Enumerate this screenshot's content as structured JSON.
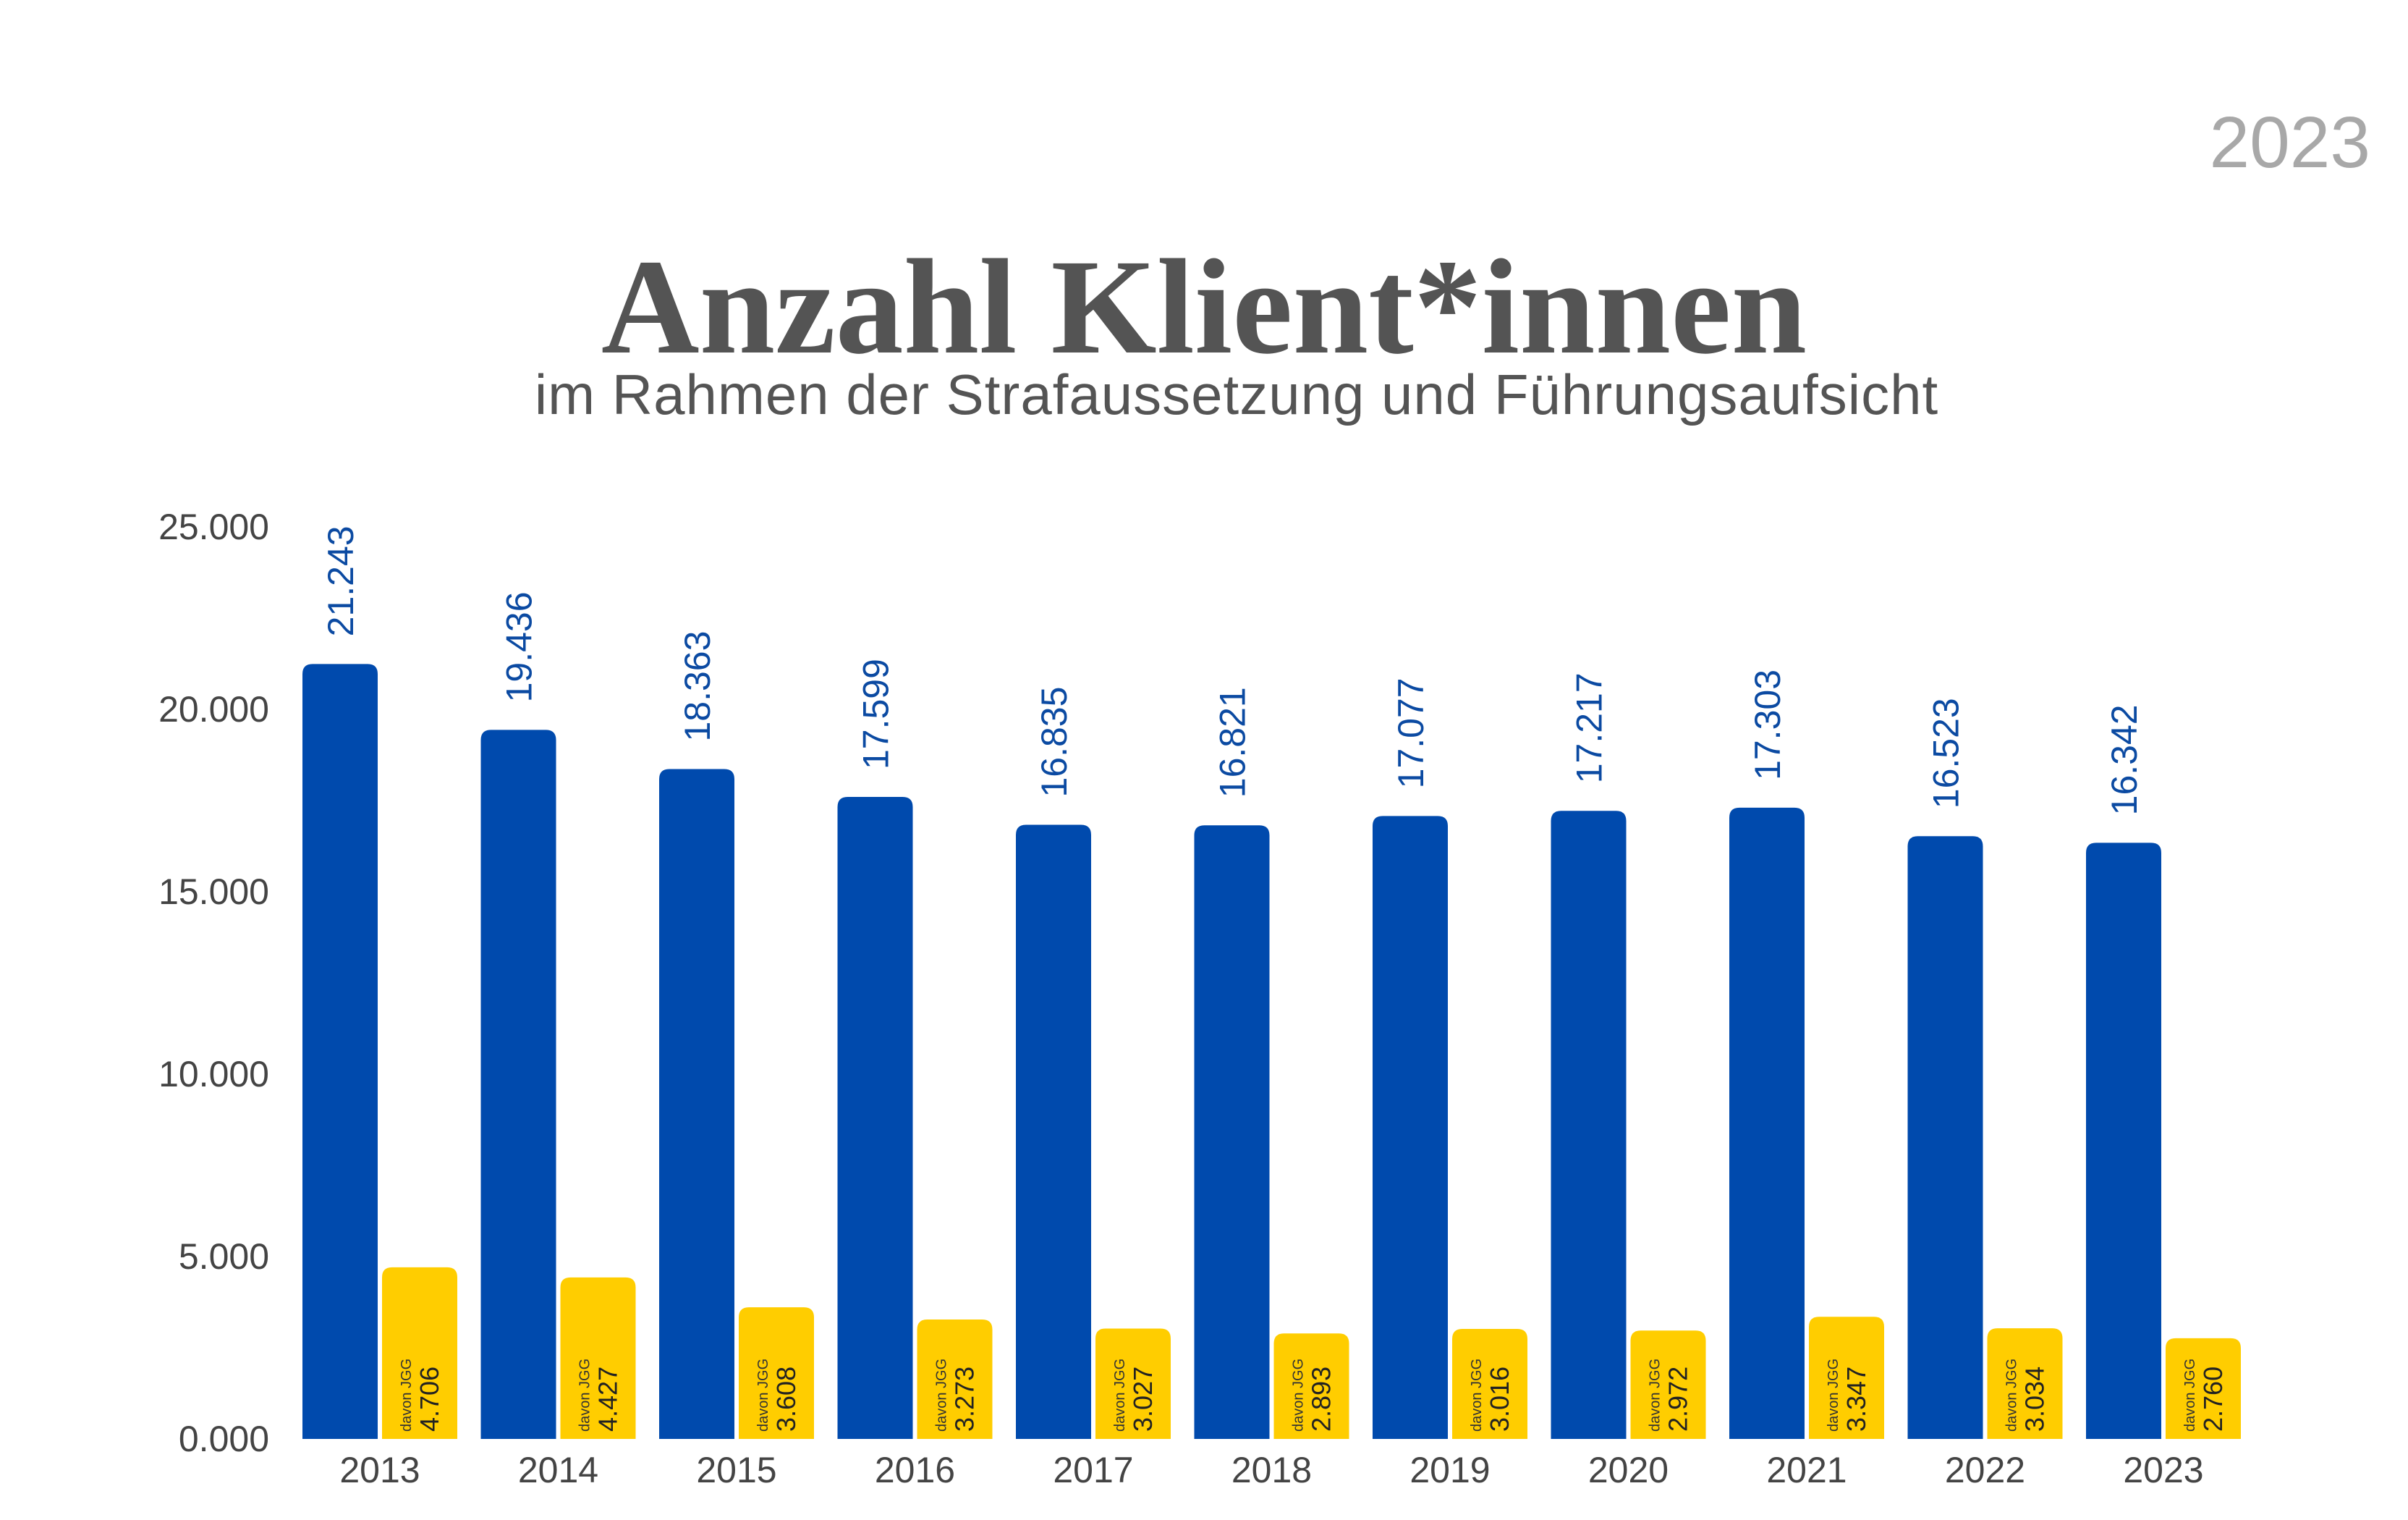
{
  "corner_year": "2023",
  "colors": {
    "primary": "#004aad",
    "secondary": "#ffcd00",
    "value_text": "#0b4aa2"
  },
  "chart_data": {
    "type": "bar",
    "title": "Anzahl Klient*innen",
    "subtitle": "im Rahmen der Strafaussetzung und Führungsaufsicht",
    "categories": [
      "2013",
      "2014",
      "2015",
      "2016",
      "2017",
      "2018",
      "2019",
      "2020",
      "2021",
      "2022",
      "2023"
    ],
    "series": [
      {
        "values": [
          21243,
          19436,
          18363,
          17599,
          16835,
          16821,
          17077,
          17217,
          17303,
          16523,
          16342
        ],
        "labels": [
          "21.243",
          "19.436",
          "18.363",
          "17.599",
          "16.835",
          "16.821",
          "17.077",
          "17.217",
          "17.303",
          "16.523",
          "16.342"
        ]
      },
      {
        "name": "davon JGG",
        "values": [
          4706,
          4427,
          3608,
          3273,
          3027,
          2893,
          3016,
          2972,
          3347,
          3034,
          2760
        ],
        "labels": [
          "4.706",
          "4.427",
          "3.608",
          "3.273",
          "3.027",
          "2.893",
          "3.016",
          "2.972",
          "3.347",
          "3.034",
          "2.760"
        ]
      }
    ],
    "ylim": [
      0,
      25000
    ],
    "yticks": [
      "0.000",
      "5.000",
      "10.000",
      "15.000",
      "20.000",
      "25.000"
    ],
    "xlabel": "",
    "ylabel": "",
    "grid": false,
    "legend": "none"
  }
}
